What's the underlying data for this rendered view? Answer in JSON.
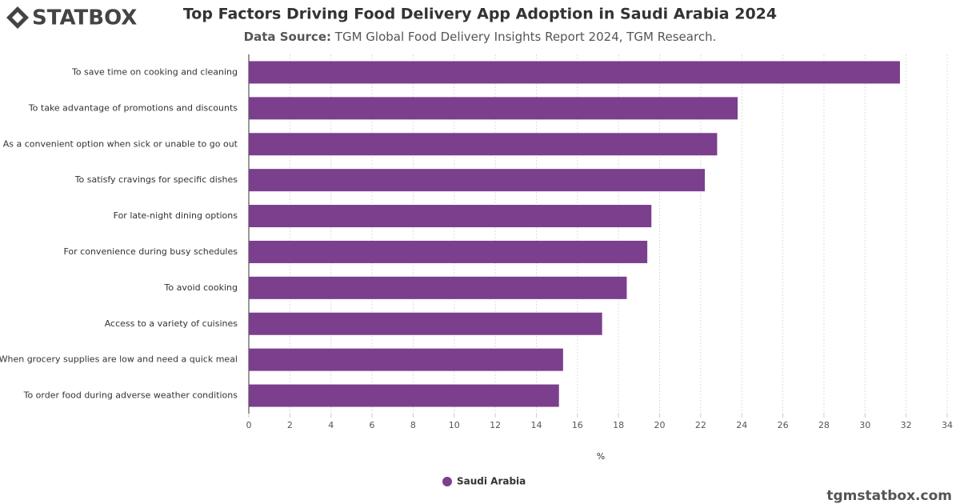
{
  "logo": "STATBOX",
  "footer": "tgmstatbox.com",
  "chart_data": {
    "type": "bar",
    "orientation": "horizontal",
    "title": "Top Factors Driving Food Delivery App Adoption in Saudi Arabia 2024",
    "source_label": "Data Source:",
    "source": "TGM Global Food Delivery Insights Report 2024, TGM Research.",
    "x_label": "%",
    "categories": [
      "To save time on cooking and cleaning",
      "To take advantage of promotions and discounts",
      "As a convenient option when sick or unable to go out",
      "To satisfy cravings for specific dishes",
      "For late-night dining options",
      "For convenience during busy schedules",
      "To avoid cooking",
      "Access to a variety of cuisines",
      "When grocery supplies are low and need a quick meal",
      "To order food during adverse weather conditions"
    ],
    "series": [
      {
        "name": "Saudi Arabia",
        "color": "#7b3f8e",
        "values": [
          31.7,
          23.8,
          22.8,
          22.2,
          19.6,
          19.4,
          18.4,
          17.2,
          15.3,
          15.1
        ]
      }
    ],
    "xlim": [
      0,
      34
    ],
    "xticks": [
      0,
      2,
      4,
      6,
      8,
      10,
      12,
      14,
      16,
      18,
      20,
      22,
      24,
      26,
      28,
      30,
      32,
      34
    ],
    "grid": true,
    "legend": "bottom"
  }
}
